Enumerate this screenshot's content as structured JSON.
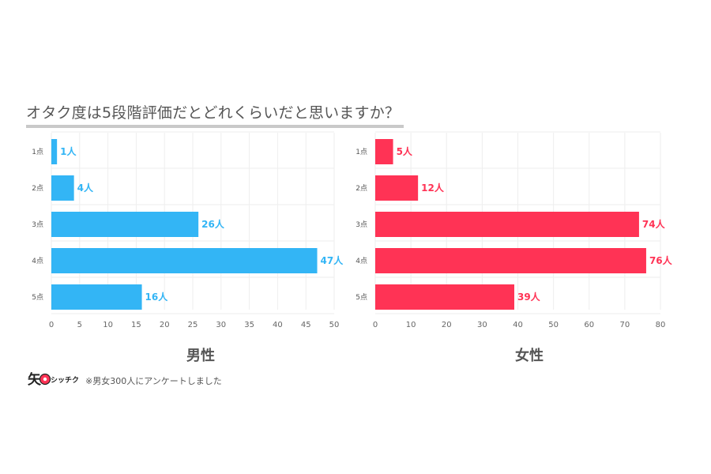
{
  "title": "オタク度は5段階評価だとどれくらいだと思いますか？",
  "note": "※男女300人にアンケートしました",
  "logo_text": "シッチク",
  "chart_data": [
    {
      "type": "bar",
      "orientation": "horizontal",
      "panel_label": "男性",
      "color": "#33b5f5",
      "categories": [
        "1点",
        "2点",
        "3点",
        "4点",
        "5点"
      ],
      "values": [
        1,
        4,
        26,
        47,
        16
      ],
      "value_labels": [
        "1人",
        "4人",
        "26人",
        "47人",
        "16人"
      ],
      "xlim": [
        0,
        50
      ],
      "ticks": [
        "0",
        "5",
        "10",
        "15",
        "20",
        "25",
        "30",
        "35",
        "40",
        "45",
        "50"
      ],
      "grid": true
    },
    {
      "type": "bar",
      "orientation": "horizontal",
      "panel_label": "女性",
      "color": "#ff3355",
      "categories": [
        "1点",
        "2点",
        "3点",
        "4点",
        "5点"
      ],
      "values": [
        5,
        12,
        74,
        76,
        39
      ],
      "value_labels": [
        "5人",
        "12人",
        "74人",
        "76人",
        "39人"
      ],
      "xlim": [
        0,
        80
      ],
      "ticks": [
        "0",
        "10",
        "20",
        "30",
        "40",
        "50",
        "60",
        "70",
        "80"
      ],
      "grid": true
    }
  ]
}
